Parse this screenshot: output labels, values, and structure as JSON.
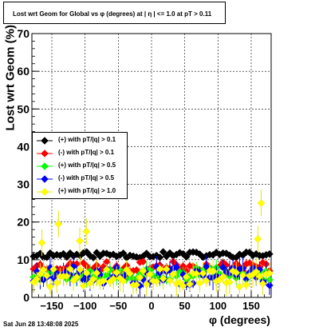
{
  "title": "Lost wrt Geom for Global vs φ (degrees) at |  η  | <= 1.0 at pT > 0.11",
  "timestamp": "Sat Jun 28 13:48:08 2025",
  "chart_data": {
    "type": "scatter",
    "title": "Lost wrt Geom for Global vs φ (degrees) at |  η  | <= 1.0 at pT > 0.11",
    "xlabel": "φ (degrees)",
    "ylabel": "Lost wrt Geom (%)",
    "xlim": [
      -180,
      180
    ],
    "ylim": [
      0,
      70
    ],
    "grid": true,
    "legend_position": "left-middle",
    "x_ticks": [
      -150,
      -100,
      -50,
      0,
      50,
      100,
      150
    ],
    "x_tick_labels": [
      "−150",
      "−100",
      "−50",
      "0",
      "50",
      "100",
      "150"
    ],
    "y_ticks": [
      0,
      10,
      20,
      30,
      40,
      50,
      60,
      70
    ],
    "series": [
      {
        "name": "(+) with pT/|q| > 0.1",
        "color": "#000000",
        "level": 11.3,
        "spread": 0.8,
        "err": 0.6,
        "seed": 11
      },
      {
        "name": "(-) with pT/|q| > 0.1",
        "color": "#ff0000",
        "level": 8.2,
        "spread": 1.3,
        "err": 0.9,
        "seed": 23
      },
      {
        "name": "(+) with pT/|q| > 0.5",
        "color": "#00ff00",
        "level": 6.3,
        "spread": 1.8,
        "err": 1.5,
        "seed": 37
      },
      {
        "name": "(-) with pT/|q| > 0.5",
        "color": "#0000ff",
        "level": 5.6,
        "spread": 2.6,
        "err": 2.2,
        "seed": 51
      },
      {
        "name": "(+) with pT/|q| > 1.0",
        "color": "#ffff00",
        "level": 5.2,
        "spread": 2.4,
        "err": 2.4,
        "seed": 71,
        "outliers": [
          [
            -140,
            19.5
          ],
          [
            -108,
            15
          ],
          [
            -98,
            17.5
          ],
          [
            165,
            25
          ],
          [
            160,
            15.5
          ],
          [
            -165,
            14.5
          ]
        ]
      }
    ]
  }
}
